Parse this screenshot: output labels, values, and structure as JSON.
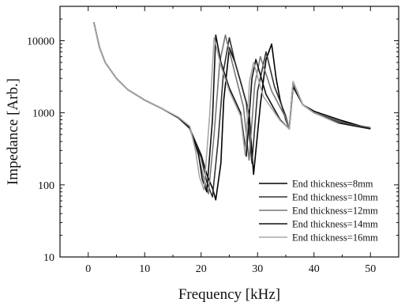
{
  "chart_data": {
    "type": "line",
    "xlabel": "Frequency [kHz]",
    "ylabel": "Impedance [Arb.]",
    "xlim": [
      -5,
      55
    ],
    "ylim": [
      10,
      30000
    ],
    "yscale": "log",
    "xticks": [
      0,
      10,
      20,
      30,
      40,
      50
    ],
    "yticks": [
      10,
      100,
      1000,
      10000
    ],
    "legend_position": "bottom-right",
    "series": [
      {
        "name": "End thickness=8mm",
        "color": "#000000",
        "x": [
          1,
          2,
          3,
          5,
          7,
          10,
          13,
          16,
          18,
          20,
          21,
          22,
          22.6,
          23.5,
          24,
          25,
          26,
          27,
          28.5,
          29.3,
          30.5,
          31.5,
          32.5,
          33.3,
          34,
          35,
          35.6,
          36.3,
          38,
          40,
          44.5,
          47,
          50
        ],
        "y": [
          18000,
          8000,
          5000,
          3000,
          2100,
          1500,
          1150,
          850,
          600,
          260,
          140,
          90,
          62,
          200,
          1500,
          8000,
          5000,
          2700,
          1000,
          140,
          1300,
          5500,
          9000,
          3000,
          1500,
          800,
          600,
          2300,
          1300,
          1050,
          800,
          700,
          600
        ]
      },
      {
        "name": "End thickness=10mm",
        "color": "#333333",
        "x": [
          1,
          2,
          3,
          5,
          7,
          10,
          13,
          16,
          18,
          20,
          21,
          22,
          23,
          24,
          25,
          26,
          28,
          29,
          30,
          31.5,
          33,
          35,
          35.6,
          36.3,
          38,
          40,
          44.5,
          47,
          50
        ],
        "y": [
          18000,
          8000,
          5000,
          3000,
          2100,
          1500,
          1150,
          850,
          600,
          240,
          110,
          68,
          400,
          4000,
          11000,
          5000,
          1400,
          200,
          2000,
          7000,
          2300,
          900,
          600,
          2500,
          1300,
          1000,
          760,
          680,
          620
        ]
      },
      {
        "name": "End thickness=12mm",
        "color": "#777777",
        "x": [
          1,
          2,
          3,
          5,
          7,
          10,
          13,
          16,
          18,
          19.5,
          20.5,
          21.3,
          22.3,
          23.3,
          24.3,
          25.5,
          27.5,
          28.5,
          29.5,
          30.5,
          32.5,
          35,
          35.6,
          36.3,
          38,
          40,
          44.5,
          47,
          50
        ],
        "y": [
          18000,
          8000,
          5000,
          3000,
          2100,
          1500,
          1150,
          850,
          600,
          260,
          120,
          75,
          500,
          5000,
          12000,
          5000,
          1200,
          220,
          2500,
          6000,
          2000,
          850,
          600,
          2600,
          1300,
          1000,
          740,
          670,
          610
        ]
      },
      {
        "name": "End thickness=14mm",
        "color": "#111111",
        "x": [
          1,
          2,
          3,
          5,
          7,
          10,
          13,
          16,
          18,
          19.5,
          20.2,
          21,
          22,
          22.6,
          23.5,
          25,
          27,
          28,
          29,
          29.7,
          31.5,
          34,
          35.6,
          36.3,
          38,
          40,
          44.5,
          47,
          50
        ],
        "y": [
          18000,
          8000,
          5000,
          3000,
          2100,
          1500,
          1150,
          850,
          620,
          280,
          120,
          80,
          800,
          12000,
          5000,
          2200,
          1000,
          250,
          3000,
          5500,
          1800,
          800,
          600,
          2700,
          1300,
          1000,
          720,
          660,
          600
        ]
      },
      {
        "name": "End thickness=16mm",
        "color": "#a8a8a8",
        "x": [
          1,
          2,
          3,
          5,
          7,
          10,
          13,
          16,
          18,
          19,
          19.7,
          20.5,
          21.5,
          22.3,
          23.5,
          25,
          27,
          27.8,
          28.6,
          29.3,
          31,
          34,
          35.6,
          36.3,
          38,
          40,
          44.5
        ],
        "y": [
          18000,
          8000,
          5000,
          3000,
          2100,
          1500,
          1150,
          870,
          650,
          300,
          130,
          85,
          900,
          11000,
          4500,
          2000,
          900,
          260,
          2800,
          5000,
          1700,
          780,
          600,
          2700,
          1300,
          1000,
          700
        ]
      }
    ]
  }
}
